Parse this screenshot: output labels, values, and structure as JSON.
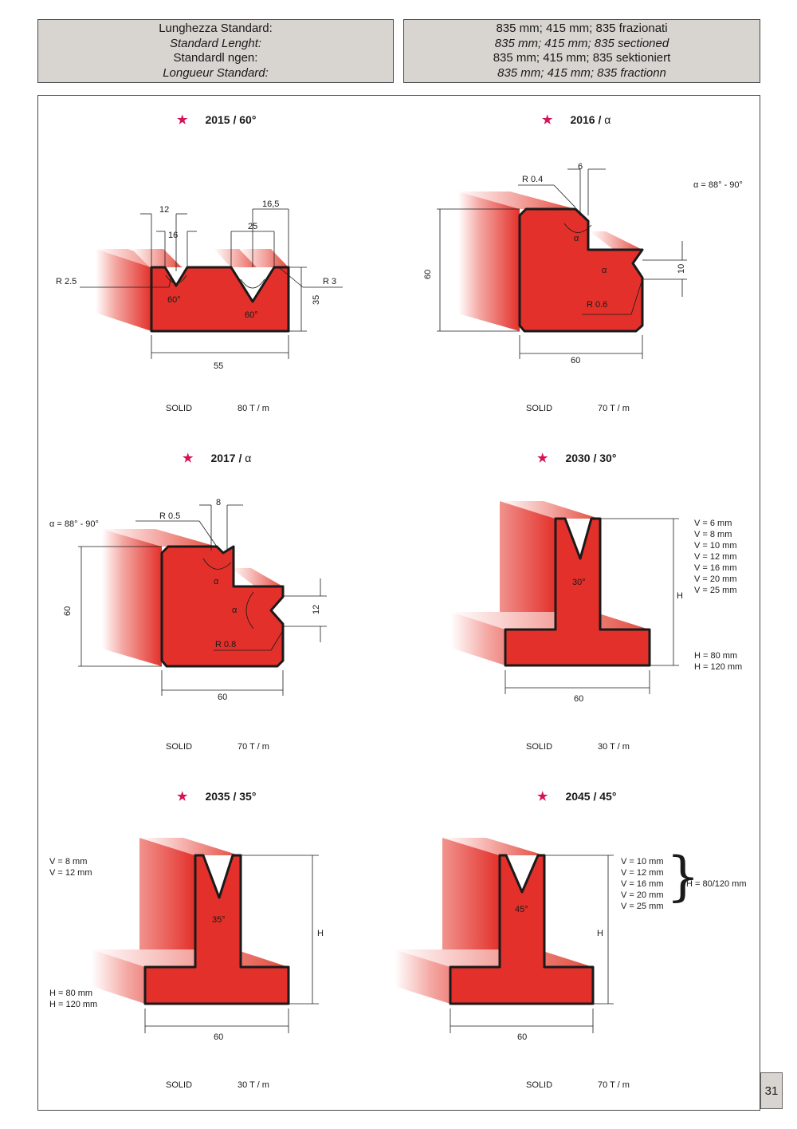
{
  "header": {
    "left": [
      "Lunghezza Standard:",
      "Standard Lenght:",
      "Standardl ngen:",
      "Longueur Standard:"
    ],
    "right": [
      "835 mm; 415 mm; 835 frazionati",
      "835 mm; 415 mm; 835 sectioned",
      "835 mm; 415 mm; 835 sektioniert",
      "835 mm; 415 mm; 835 fractionn"
    ]
  },
  "star": "★",
  "colors": {
    "profile": "#e3302a",
    "star": "#d4145a",
    "header_bg": "#d8d4d0"
  },
  "tools": [
    {
      "code": "2015 / 60°",
      "type": "SOLID",
      "load": "80 T / m",
      "dims": {
        "d12": "12",
        "d16": "16",
        "d165": "16,5",
        "d25": "25",
        "r25": "R 2.5",
        "r3": "R 3",
        "a1": "60°",
        "a2": "60°",
        "h": "35",
        "w": "55"
      }
    },
    {
      "code": "2016 / ",
      "alpha": "α",
      "type": "SOLID",
      "load": "70 T / m",
      "note": "α = 88° - 90°",
      "dims": {
        "d6": "6",
        "r04": "R 0.4",
        "h": "60",
        "d10": "10",
        "r06": "R 0.6",
        "w": "60",
        "a": "α"
      }
    },
    {
      "code": "2017 / ",
      "alpha": "α",
      "type": "SOLID",
      "load": "70 T / m",
      "note": "α = 88° - 90°",
      "dims": {
        "d8": "8",
        "r05": "R 0.5",
        "h": "60",
        "d12": "12",
        "r08": "R 0.8",
        "w": "60",
        "a": "α"
      }
    },
    {
      "code": "2030 / 30°",
      "type": "SOLID",
      "load": "30 T / m",
      "v_list": [
        "V =   6 mm",
        "V =   8 mm",
        "V = 10 mm",
        "V = 12 mm",
        "V = 16 mm",
        "V = 20 mm",
        "V = 25 mm"
      ],
      "h_list": [
        "H =   80 mm",
        "H = 120 mm"
      ],
      "dims": {
        "angle": "30°",
        "h": "H",
        "w": "60"
      }
    },
    {
      "code": "2035 / 35°",
      "type": "SOLID",
      "load": "30 T / m",
      "v_list": [
        "V =   8 mm",
        "V = 12 mm"
      ],
      "h_list": [
        "H =   80 mm",
        "H = 120 mm"
      ],
      "dims": {
        "angle": "35°",
        "h": "H",
        "w": "60"
      }
    },
    {
      "code": "2045 / 45°",
      "type": "SOLID",
      "load": "70 T / m",
      "v_list": [
        "V = 10 mm",
        "V = 12 mm",
        "V = 16 mm",
        "V = 20 mm",
        "V = 25 mm"
      ],
      "h_note": "H = 80/120 mm",
      "brace": "}",
      "dims": {
        "angle": "45°",
        "h": "H",
        "w": "60"
      }
    }
  ],
  "page_number": "31"
}
